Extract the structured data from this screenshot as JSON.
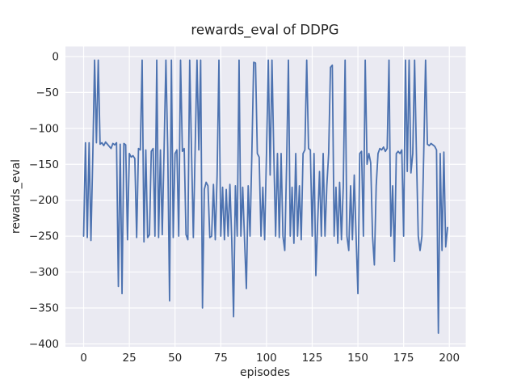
{
  "figure": {
    "title": "rewards_eval of DDPG",
    "xlabel": "episodes",
    "ylabel": "rewards_eval"
  },
  "chart_data": {
    "type": "line",
    "title": "rewards_eval of DDPG",
    "xlabel": "episodes",
    "ylabel": "rewards_eval",
    "xlim": [
      -9.95,
      208.95
    ],
    "ylim": [
      -404,
      14
    ],
    "xticks": [
      0,
      25,
      50,
      75,
      100,
      125,
      150,
      175,
      200
    ],
    "yticks": [
      0,
      -50,
      -100,
      -150,
      -200,
      -250,
      -300,
      -350,
      -400
    ],
    "grid": true,
    "legend": false,
    "plot_bg_color": "#eaeaf2",
    "grid_color": "#ffffff",
    "text_color": "#262626",
    "series": [
      {
        "name": "rewards_eval",
        "color": "#4c72b0",
        "x_start": 0,
        "x_step": 1,
        "values": [
          -250,
          -120,
          -252,
          -120,
          -256,
          -140,
          -5,
          -120,
          -5,
          -122,
          -120,
          -124,
          -119,
          -122,
          -125,
          -128,
          -121,
          -123,
          -120,
          -320,
          -122,
          -330,
          -121,
          -123,
          -255,
          -135,
          -140,
          -138,
          -142,
          -252,
          -128,
          -130,
          -5,
          -258,
          -130,
          -252,
          -248,
          -132,
          -128,
          -250,
          -5,
          -252,
          -130,
          -248,
          -130,
          -5,
          -130,
          -340,
          -5,
          -252,
          -135,
          -130,
          -250,
          -5,
          -132,
          -128,
          -248,
          -255,
          -5,
          -132,
          -252,
          -128,
          -5,
          -130,
          -5,
          -350,
          -185,
          -175,
          -180,
          -252,
          -250,
          -178,
          -255,
          -165,
          -5,
          -250,
          -182,
          -255,
          -185,
          -250,
          -178,
          -255,
          -362,
          -180,
          -250,
          -5,
          -250,
          -182,
          -255,
          -323,
          -180,
          -250,
          -135,
          -8,
          -9,
          -135,
          -140,
          -250,
          -182,
          -255,
          -135,
          -5,
          -165,
          -5,
          -135,
          -250,
          -135,
          -252,
          -135,
          -250,
          -270,
          -150,
          -5,
          -250,
          -182,
          -260,
          -135,
          -250,
          -180,
          -255,
          -135,
          -130,
          -5,
          -128,
          -130,
          -250,
          -135,
          -305,
          -230,
          -160,
          -250,
          -135,
          -250,
          -180,
          -135,
          -15,
          -12,
          -250,
          -182,
          -260,
          -175,
          -255,
          -180,
          -5,
          -250,
          -270,
          -180,
          -255,
          -165,
          -250,
          -330,
          -135,
          -132,
          -250,
          -5,
          -150,
          -135,
          -148,
          -250,
          -290,
          -180,
          -135,
          -128,
          -130,
          -126,
          -132,
          -128,
          -5,
          -250,
          -180,
          -285,
          -135,
          -132,
          -135,
          -130,
          -250,
          -5,
          -160,
          -5,
          -162,
          -135,
          -5,
          -135,
          -250,
          -270,
          -250,
          -135,
          -5,
          -122,
          -124,
          -121,
          -123,
          -125,
          -130,
          -385,
          -135,
          -270,
          -133,
          -265,
          -238
        ]
      }
    ]
  }
}
